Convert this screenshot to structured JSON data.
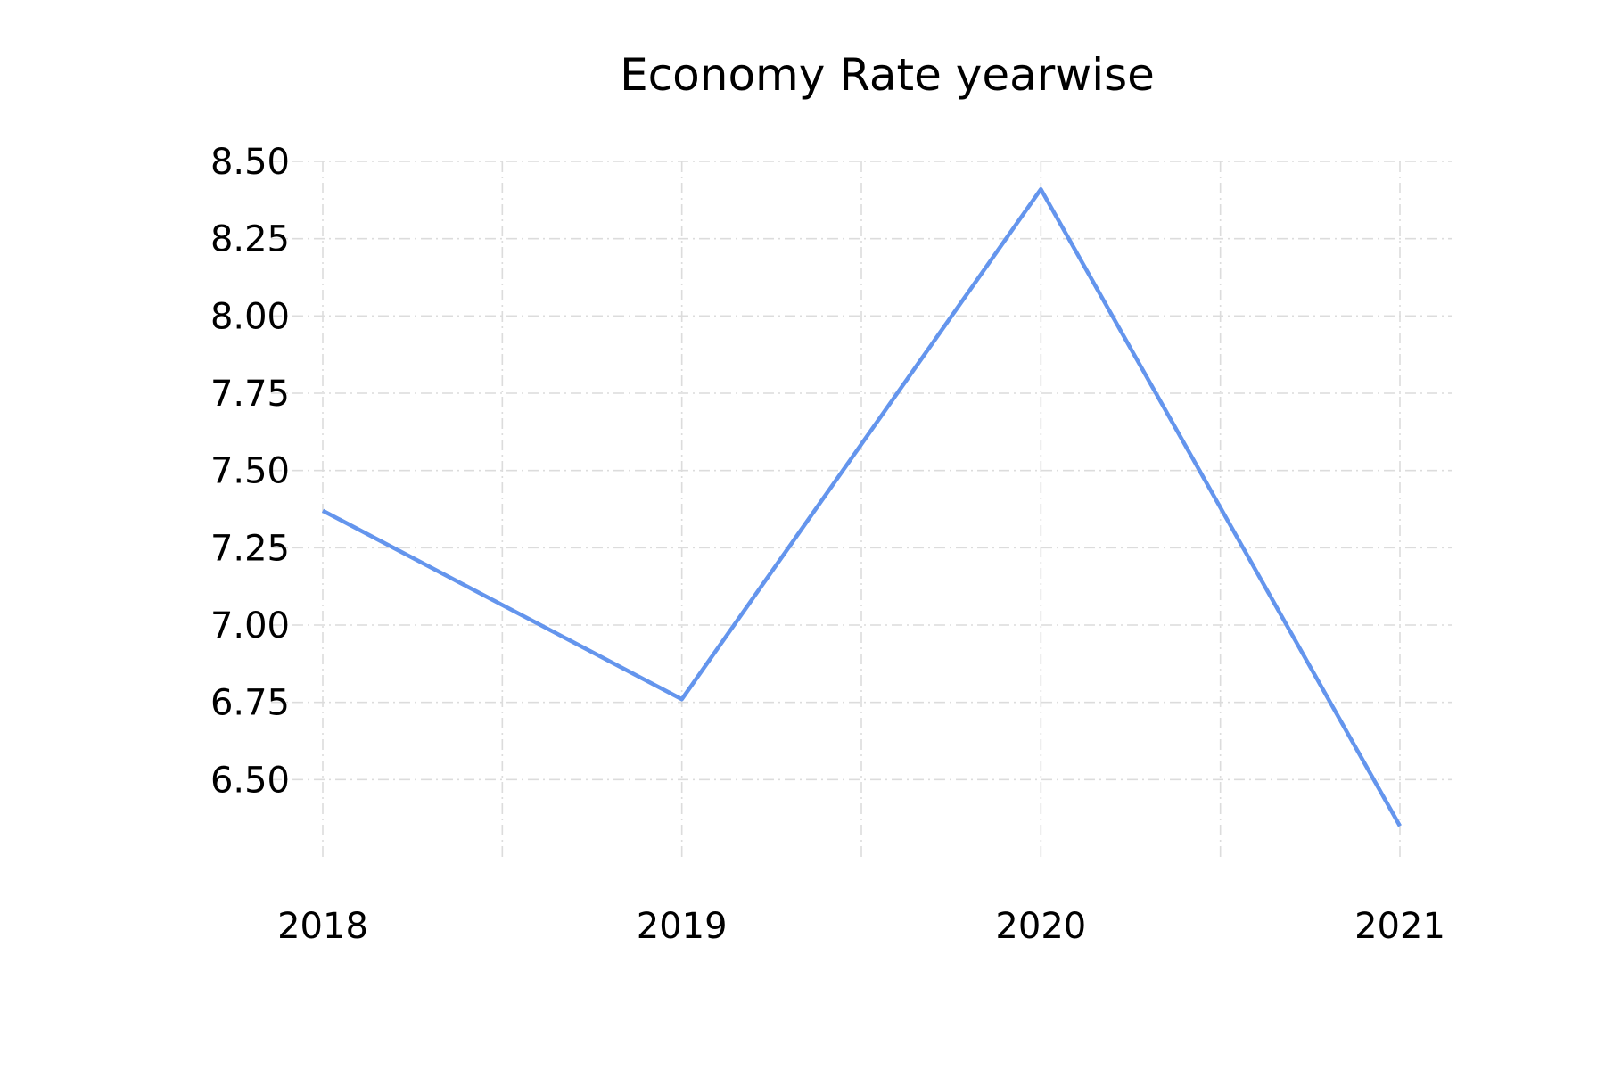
{
  "chart_data": {
    "type": "line",
    "title": "Economy Rate yearwise",
    "xlabel": "",
    "ylabel": "",
    "categories": [
      "2018",
      "2019",
      "2020",
      "2021"
    ],
    "series": [
      {
        "name": "Economy Rate",
        "color": "#6495ED",
        "values": [
          7.37,
          6.76,
          8.41,
          6.35
        ]
      }
    ],
    "ylim": [
      6.25,
      8.5
    ],
    "yticks": [
      6.5,
      6.75,
      7.0,
      7.25,
      7.5,
      7.75,
      8.0,
      8.25,
      8.5
    ],
    "ytick_labels": [
      "6.50",
      "6.75",
      "7.00",
      "7.25",
      "7.50",
      "7.75",
      "8.00",
      "8.25",
      "8.50"
    ],
    "grid": true,
    "legend": "none"
  }
}
